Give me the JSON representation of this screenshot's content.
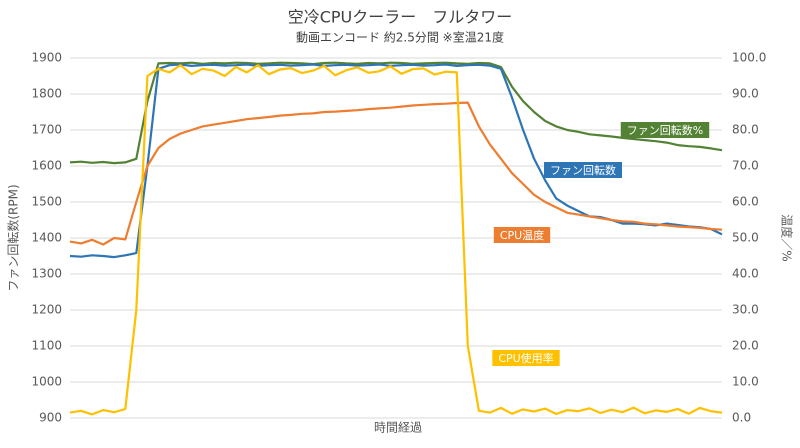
{
  "chart_data": {
    "type": "line",
    "title": "空冷CPUクーラー　フルタワー",
    "subtitle": "動画エンコード 約2.5分間 ※室温21度",
    "xlabel": "時間経過",
    "ylabel": "ファン回転数(RPM)",
    "y2label": "温度／%",
    "ylim": [
      900,
      1900
    ],
    "yticks": [
      900,
      1000,
      1100,
      1200,
      1300,
      1400,
      1500,
      1600,
      1700,
      1800,
      1900
    ],
    "y2lim": [
      0,
      100
    ],
    "y2ticks": [
      {
        "value": 0,
        "label": "0.0"
      },
      {
        "value": 10,
        "label": "10.0"
      },
      {
        "value": 20,
        "label": "20.0"
      },
      {
        "value": 30,
        "label": "30.0"
      },
      {
        "value": 40,
        "label": "40.0"
      },
      {
        "value": 50,
        "label": "50.0"
      },
      {
        "value": 60,
        "label": "60.0"
      },
      {
        "value": 70,
        "label": "70.0"
      },
      {
        "value": 80,
        "label": "80.0"
      },
      {
        "value": 90,
        "label": "90.0"
      },
      {
        "value": 100,
        "label": "100.0"
      }
    ],
    "grid": true,
    "series": [
      {
        "name": "ファン回転数%",
        "color": "#548235",
        "axis": "y2",
        "values": [
          71.0,
          71.2,
          70.9,
          71.1,
          70.8,
          71.0,
          72,
          88,
          98.5,
          98.6,
          98.5,
          98.7,
          98.4,
          98.6,
          98.5,
          98.7,
          98.6,
          98.4,
          98.5,
          98.7,
          98.6,
          98.5,
          98.3,
          98.6,
          98.7,
          98.5,
          98.4,
          98.6,
          98.5,
          98.7,
          98.6,
          98.4,
          98.5,
          98.6,
          98.7,
          98.5,
          98.4,
          98.6,
          98.5,
          97.5,
          92,
          88,
          85,
          82.5,
          81,
          80,
          79.5,
          78.8,
          78.5,
          78.2,
          77.8,
          77.5,
          77.2,
          76.9,
          76.5,
          75.8,
          75.5,
          75.3,
          74.9,
          74.4
        ]
      },
      {
        "name": "ファン回転数",
        "color": "#2e75b6",
        "values": [
          1350,
          1348,
          1352,
          1350,
          1347,
          1352,
          1358,
          1600,
          1870,
          1880,
          1882,
          1878,
          1880,
          1881,
          1879,
          1880,
          1882,
          1878,
          1880,
          1881,
          1879,
          1880,
          1882,
          1878,
          1880,
          1881,
          1879,
          1880,
          1882,
          1878,
          1880,
          1881,
          1879,
          1880,
          1882,
          1878,
          1880,
          1881,
          1879,
          1870,
          1790,
          1700,
          1620,
          1560,
          1510,
          1490,
          1475,
          1460,
          1458,
          1450,
          1440,
          1440,
          1438,
          1435,
          1440,
          1436,
          1432,
          1430,
          1425,
          1410
        ]
      },
      {
        "name": "CPU温度",
        "color": "#ed7d31",
        "axis": "y2",
        "values": [
          49,
          48.5,
          49.5,
          48.2,
          50,
          49.6,
          60,
          70,
          75,
          77.5,
          79,
          80,
          81,
          81.5,
          82,
          82.5,
          83,
          83.3,
          83.6,
          84,
          84.2,
          84.5,
          84.6,
          85,
          85.1,
          85.3,
          85.5,
          85.8,
          86,
          86.2,
          86.5,
          86.8,
          87,
          87.2,
          87.3,
          87.5,
          87.6,
          81,
          76,
          72,
          68,
          65,
          62,
          60,
          58.5,
          57,
          56.5,
          56,
          55.5,
          55,
          54.6,
          54.5,
          54,
          53.8,
          53.5,
          53.2,
          53,
          52.8,
          52.5,
          52.3
        ]
      },
      {
        "name": "CPU使用率",
        "color": "#ffc000",
        "axis": "y2",
        "values": [
          1.5,
          2,
          1,
          2.2,
          1.6,
          2.5,
          30,
          95,
          97,
          96,
          98,
          95.5,
          97,
          96.5,
          95,
          97.5,
          96,
          98,
          95.5,
          96.8,
          97.2,
          95.8,
          96.5,
          97.8,
          95.2,
          96.6,
          97.4,
          95.9,
          96.3,
          97.7,
          95.6,
          96.9,
          97.1,
          95.4,
          96.2,
          96,
          20,
          2,
          1.5,
          2.8,
          1.2,
          2.4,
          1.8,
          2.6,
          1.1,
          2.2,
          1.9,
          2.7,
          1.4,
          2.3,
          1.6,
          2.9,
          1.3,
          2.1,
          1.7,
          2.5,
          1.2,
          2.8,
          1.9,
          1.5
        ]
      }
    ]
  }
}
